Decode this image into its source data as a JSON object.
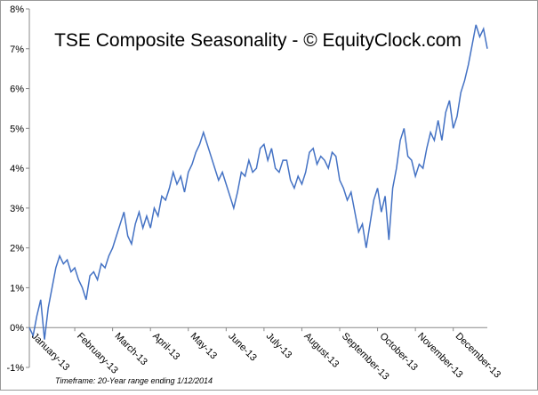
{
  "chart_data": {
    "type": "line",
    "title": "TSE Composite Seasonality - © EquityClock.com",
    "note": "Timeframe: 20-Year range ending 1/12/2014",
    "x": [
      0,
      1,
      2,
      3,
      4,
      5,
      6,
      7,
      8,
      9,
      10,
      11,
      12,
      13,
      14,
      15,
      16,
      17,
      18,
      19,
      20,
      21,
      22,
      23,
      24,
      25,
      26,
      27,
      28,
      29,
      30,
      31,
      32,
      33,
      34,
      35,
      36,
      37,
      38,
      39,
      40,
      41,
      42,
      43,
      44,
      45,
      46,
      47,
      48,
      49,
      50,
      51,
      52,
      53,
      54,
      55,
      56,
      57,
      58,
      59,
      60,
      61,
      62,
      63,
      64,
      65,
      66,
      67,
      68,
      69,
      70,
      71,
      72,
      73,
      74,
      75,
      76,
      77,
      78,
      79,
      80,
      81,
      82,
      83,
      84,
      85,
      86,
      87,
      88,
      89,
      90,
      91,
      92,
      93,
      94,
      95,
      96,
      97,
      98,
      99,
      100,
      101,
      102,
      103,
      104,
      105,
      106,
      107,
      108,
      109,
      110,
      111,
      112,
      113,
      114,
      115,
      116,
      117,
      118,
      119,
      120,
      121
    ],
    "series": [
      {
        "color": "#4472c4",
        "values": [
          0,
          -0.2,
          0.3,
          0.7,
          -0.3,
          0.5,
          1.0,
          1.5,
          1.8,
          1.6,
          1.7,
          1.4,
          1.5,
          1.2,
          1.0,
          0.7,
          1.3,
          1.4,
          1.2,
          1.6,
          1.5,
          1.8,
          2.0,
          2.3,
          2.6,
          2.9,
          2.3,
          2.1,
          2.6,
          2.9,
          2.5,
          2.8,
          2.5,
          3.0,
          2.8,
          3.3,
          3.2,
          3.5,
          3.9,
          3.6,
          3.8,
          3.4,
          3.9,
          4.1,
          4.4,
          4.6,
          4.9,
          4.6,
          4.3,
          4.0,
          3.7,
          3.9,
          3.6,
          3.3,
          3.0,
          3.4,
          3.9,
          3.8,
          4.2,
          3.9,
          4.0,
          4.5,
          4.6,
          4.2,
          4.5,
          4.0,
          3.9,
          4.2,
          4.2,
          3.7,
          3.5,
          3.8,
          3.6,
          3.9,
          4.4,
          4.5,
          4.1,
          4.3,
          4.2,
          4.0,
          4.4,
          4.3,
          3.7,
          3.5,
          3.2,
          3.4,
          2.9,
          2.4,
          2.6,
          2.0,
          2.6,
          3.2,
          3.5,
          2.9,
          3.3,
          2.2,
          3.5,
          4.0,
          4.7,
          5.0,
          4.3,
          4.2,
          3.8,
          4.1,
          4.0,
          4.5,
          4.9,
          4.7,
          5.2,
          4.7,
          5.4,
          5.7,
          5.0,
          5.3,
          5.9,
          6.2,
          6.6,
          7.1,
          7.6,
          7.3,
          7.5,
          7.0
        ]
      }
    ],
    "xlim": [
      0,
      121
    ],
    "xticks": [
      {
        "value": 0,
        "label": "January-13"
      },
      {
        "value": 12,
        "label": "February-13"
      },
      {
        "value": 22,
        "label": "March-13"
      },
      {
        "value": 32,
        "label": "April-13"
      },
      {
        "value": 42,
        "label": "May-13"
      },
      {
        "value": 52,
        "label": "June-13"
      },
      {
        "value": 62,
        "label": "July-13"
      },
      {
        "value": 72,
        "label": "August-13"
      },
      {
        "value": 82,
        "label": "September-13"
      },
      {
        "value": 92,
        "label": "October-13"
      },
      {
        "value": 102,
        "label": "November-13"
      },
      {
        "value": 112,
        "label": "December-13"
      }
    ],
    "ylim": [
      -1,
      8
    ],
    "yticks": [
      {
        "value": -1,
        "label": "-1%"
      },
      {
        "value": 0,
        "label": "0%"
      },
      {
        "value": 1,
        "label": "1%"
      },
      {
        "value": 2,
        "label": "2%"
      },
      {
        "value": 3,
        "label": "3%"
      },
      {
        "value": 4,
        "label": "4%"
      },
      {
        "value": 5,
        "label": "5%"
      },
      {
        "value": 6,
        "label": "6%"
      },
      {
        "value": 7,
        "label": "7%"
      },
      {
        "value": 8,
        "label": "8%"
      }
    ]
  }
}
